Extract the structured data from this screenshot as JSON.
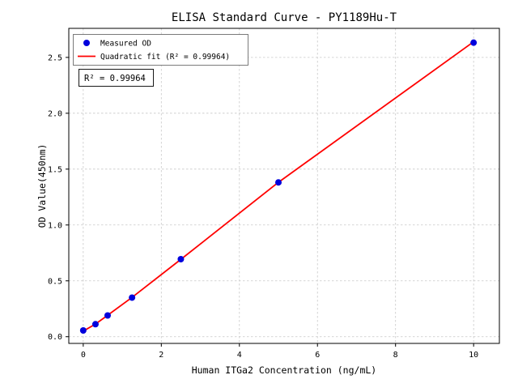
{
  "window": {
    "background": "#ffffff"
  },
  "chart_data": {
    "type": "scatter",
    "title": "ELISA Standard Curve - PY1189Hu-T",
    "xlabel": "Human ITGa2 Concentration (ng/mL)",
    "ylabel": "OD Value(450nm)",
    "xlim": [
      -0.37,
      10.66
    ],
    "ylim": [
      -0.06,
      2.76
    ],
    "x_ticks": {
      "values": [
        0,
        2,
        4,
        6,
        8,
        10
      ],
      "labels": [
        "0",
        "2",
        "4",
        "6",
        "8",
        "10"
      ]
    },
    "y_ticks": {
      "values": [
        0.0,
        0.5,
        1.0,
        1.5,
        2.0,
        2.5
      ],
      "labels": [
        "0.0",
        "0.5",
        "1.0",
        "1.5",
        "2.0",
        "2.5"
      ]
    },
    "grid": true,
    "grid_color": "#c8c8c8",
    "legend_position": "upper left",
    "annotation": "R² = 0.99964",
    "series": [
      {
        "name": "Measured OD",
        "type": "scatter",
        "color": "#0000dd",
        "x": [
          0,
          0.313,
          0.625,
          1.25,
          2.5,
          5,
          10
        ],
        "y": [
          0.056,
          0.112,
          0.19,
          0.35,
          0.694,
          1.381,
          2.632
        ]
      },
      {
        "name": "Quadratic fit (R² = 0.99964)",
        "type": "line",
        "color": "#ff0000",
        "x": [
          0,
          0.313,
          0.625,
          1.25,
          2.5,
          5,
          10
        ],
        "y": [
          0.05,
          0.113,
          0.192,
          0.352,
          0.692,
          1.382,
          2.64
        ]
      }
    ]
  }
}
